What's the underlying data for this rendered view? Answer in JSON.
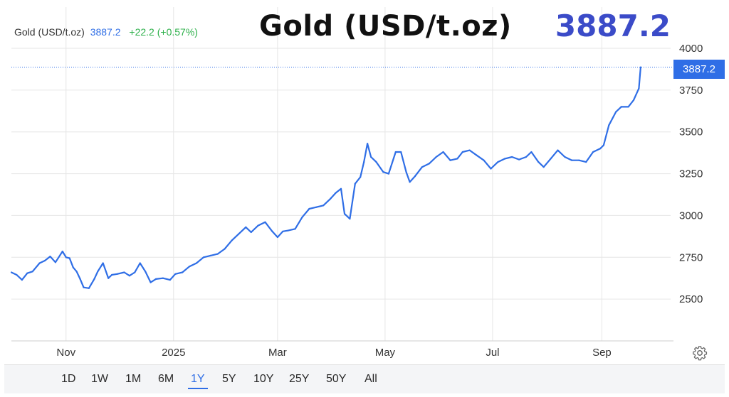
{
  "legend": {
    "name": "Gold (USD/t.oz)",
    "value": "3887.2",
    "change": "+22.2 (+0.57%)"
  },
  "header": {
    "title": "Gold (USD/t.oz)",
    "price": "3887.2"
  },
  "price_tag": "3887.2",
  "colors": {
    "line": "#2f6ee6",
    "title_price": "#3b4bc8",
    "change_positive": "#2db04a",
    "grid": "#e6e6e6"
  },
  "settings_icon": "gear-icon",
  "range": {
    "buttons": [
      "1D",
      "1W",
      "1M",
      "6M",
      "1Y",
      "5Y",
      "10Y",
      "25Y",
      "50Y",
      "All"
    ],
    "active": "1Y"
  },
  "chart_data": {
    "type": "line",
    "series": [
      {
        "name": "Gold (USD/t.oz)",
        "x": [
          "2024-10-01",
          "2024-10-04",
          "2024-10-07",
          "2024-10-10",
          "2024-10-13",
          "2024-10-17",
          "2024-10-20",
          "2024-10-23",
          "2024-10-26",
          "2024-10-30",
          "2024-11-01",
          "2024-11-03",
          "2024-11-05",
          "2024-11-07",
          "2024-11-09",
          "2024-11-11",
          "2024-11-14",
          "2024-11-17",
          "2024-11-19",
          "2024-11-22",
          "2024-11-25",
          "2024-11-27",
          "2024-11-30",
          "2024-12-04",
          "2024-12-07",
          "2024-12-10",
          "2024-12-13",
          "2024-12-16",
          "2024-12-19",
          "2024-12-22",
          "2024-12-26",
          "2024-12-30",
          "2025-01-02",
          "2025-01-06",
          "2025-01-10",
          "2025-01-14",
          "2025-01-18",
          "2025-01-22",
          "2025-01-26",
          "2025-01-30",
          "2025-02-03",
          "2025-02-07",
          "2025-02-11",
          "2025-02-14",
          "2025-02-18",
          "2025-02-22",
          "2025-02-26",
          "2025-03-01",
          "2025-03-04",
          "2025-03-07",
          "2025-03-11",
          "2025-03-15",
          "2025-03-19",
          "2025-03-23",
          "2025-03-27",
          "2025-03-31",
          "2025-04-03",
          "2025-04-06",
          "2025-04-08",
          "2025-04-11",
          "2025-04-14",
          "2025-04-17",
          "2025-04-19",
          "2025-04-21",
          "2025-04-23",
          "2025-04-26",
          "2025-04-30",
          "2025-05-03",
          "2025-05-07",
          "2025-05-10",
          "2025-05-13",
          "2025-05-15",
          "2025-05-18",
          "2025-05-22",
          "2025-05-26",
          "2025-05-30",
          "2025-06-03",
          "2025-06-07",
          "2025-06-11",
          "2025-06-14",
          "2025-06-18",
          "2025-06-22",
          "2025-06-26",
          "2025-06-30",
          "2025-07-04",
          "2025-07-08",
          "2025-07-12",
          "2025-07-16",
          "2025-07-20",
          "2025-07-23",
          "2025-07-27",
          "2025-07-30",
          "2025-08-03",
          "2025-08-07",
          "2025-08-11",
          "2025-08-15",
          "2025-08-19",
          "2025-08-23",
          "2025-08-27",
          "2025-08-31",
          "2025-09-02",
          "2025-09-05",
          "2025-09-09",
          "2025-09-12",
          "2025-09-16",
          "2025-09-19",
          "2025-09-22",
          "2025-09-23"
        ],
        "values": [
          2660,
          2645,
          2615,
          2655,
          2665,
          2715,
          2730,
          2755,
          2720,
          2785,
          2750,
          2745,
          2690,
          2665,
          2620,
          2570,
          2565,
          2620,
          2665,
          2715,
          2625,
          2645,
          2650,
          2660,
          2640,
          2660,
          2715,
          2665,
          2600,
          2620,
          2625,
          2615,
          2650,
          2660,
          2695,
          2715,
          2750,
          2760,
          2770,
          2800,
          2850,
          2890,
          2930,
          2900,
          2940,
          2960,
          2905,
          2870,
          2905,
          2910,
          2920,
          2990,
          3040,
          3050,
          3060,
          3100,
          3135,
          3160,
          3010,
          2980,
          3190,
          3230,
          3320,
          3430,
          3350,
          3320,
          3260,
          3250,
          3380,
          3380,
          3260,
          3200,
          3235,
          3290,
          3310,
          3350,
          3380,
          3330,
          3340,
          3380,
          3390,
          3360,
          3330,
          3280,
          3320,
          3340,
          3350,
          3335,
          3350,
          3380,
          3320,
          3290,
          3340,
          3390,
          3350,
          3330,
          3330,
          3320,
          3380,
          3400,
          3420,
          3540,
          3620,
          3650,
          3650,
          3690,
          3760,
          3887.2
        ]
      }
    ],
    "x_ticks": [
      "Nov",
      "2025",
      "Mar",
      "May",
      "Jul",
      "Sep"
    ],
    "y_ticks": [
      2500,
      2750,
      3000,
      3250,
      3500,
      3750,
      4000
    ],
    "xlim": [
      "2024-10-01",
      "2025-10-10"
    ],
    "ylim": [
      2250,
      4000
    ],
    "title": "Gold (USD/t.oz)",
    "last_value": 3887.2,
    "grid": true
  }
}
